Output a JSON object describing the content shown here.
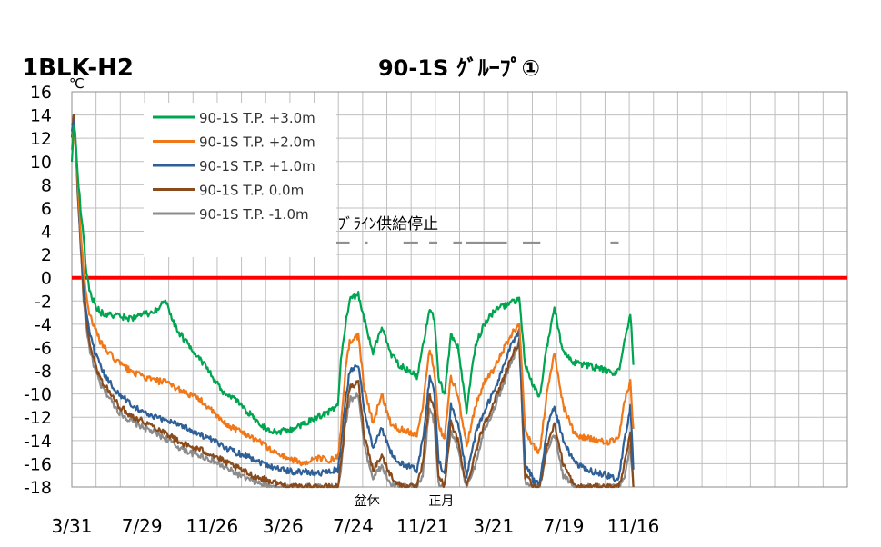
{
  "chart_data": {
    "type": "line",
    "corner_label": "1BLK-H2",
    "title": "90-1S ｸﾞﾙｰﾌﾟ①",
    "ylabel": "℃",
    "ylim": [
      -18,
      16
    ],
    "yticks": [
      16,
      14,
      12,
      10,
      8,
      6,
      4,
      2,
      0,
      -2,
      -4,
      -6,
      -8,
      -10,
      -12,
      -14,
      -16,
      -18
    ],
    "xlim": [
      0,
      1326
    ],
    "xticks": [
      {
        "label": "3/31",
        "t": 0
      },
      {
        "label": "7/29",
        "t": 120
      },
      {
        "label": "11/26",
        "t": 240
      },
      {
        "label": "3/26",
        "t": 361
      },
      {
        "label": "7/24",
        "t": 481
      },
      {
        "label": "11/21",
        "t": 600
      },
      {
        "label": "3/21",
        "t": 721
      },
      {
        "label": "7/19",
        "t": 841
      },
      {
        "label": "11/16",
        "t": 960
      }
    ],
    "grid": true,
    "legend_position": "top-left",
    "reference_line": {
      "y": 0,
      "color": "#ff0000"
    },
    "annotations": [
      {
        "text": "ﾌﾞﾗｲﾝ供給停止",
        "t": 455,
        "y": 4.2
      },
      {
        "text": "盆休",
        "t": 483,
        "y": -19.0
      },
      {
        "text": "正月",
        "t": 610,
        "y": -19.0
      }
    ],
    "brine_stop_periods": [
      [
        443,
        475
      ],
      [
        501,
        506
      ],
      [
        567,
        592
      ],
      [
        611,
        625
      ],
      [
        652,
        667
      ],
      [
        674,
        744
      ],
      [
        771,
        801
      ],
      [
        921,
        935
      ]
    ],
    "series_keypoints_x": [
      0,
      3,
      6,
      10,
      15,
      20,
      25,
      30,
      40,
      50,
      60,
      80,
      100,
      120,
      140,
      160,
      180,
      200,
      220,
      240,
      260,
      280,
      300,
      320,
      340,
      360,
      380,
      400,
      420,
      440,
      455,
      460,
      468,
      475,
      490,
      500,
      515,
      530,
      545,
      560,
      575,
      590,
      600,
      612,
      620,
      627,
      637,
      648,
      660,
      675,
      690,
      705,
      720,
      735,
      750,
      765,
      775,
      790,
      800,
      812,
      825,
      840,
      860,
      880,
      900,
      915,
      925,
      935,
      945,
      955,
      960
    ],
    "series": [
      {
        "name": "90-1S T.P. +3.0m",
        "color": "#00a550",
        "values": [
          10,
          13.2,
          12,
          9,
          6,
          3.5,
          0.5,
          -1,
          -2.4,
          -3,
          -3.2,
          -3.3,
          -3.5,
          -3.2,
          -3,
          -2,
          -4.5,
          -5.8,
          -7,
          -8.5,
          -10,
          -10.5,
          -11.5,
          -12.5,
          -13.2,
          -13.2,
          -13,
          -12.5,
          -12,
          -11.5,
          -11,
          -7,
          -4,
          -2,
          -1.4,
          -3.5,
          -6.5,
          -4.2,
          -6.5,
          -7.5,
          -8,
          -8.5,
          -6,
          -2.5,
          -3.8,
          -8.5,
          -10.2,
          -5,
          -6,
          -11.5,
          -5.8,
          -4,
          -3,
          -2.5,
          -2.2,
          -1.8,
          -7.5,
          -9.5,
          -10.2,
          -6,
          -2.5,
          -6.5,
          -7.3,
          -7.5,
          -7.8,
          -8,
          -8.2,
          -8,
          -5.5,
          -3,
          -7.5
        ]
      },
      {
        "name": "90-1S T.P. +2.0m",
        "color": "#f07818",
        "values": [
          11,
          12.8,
          11.5,
          8.5,
          4,
          0.8,
          -1.5,
          -3,
          -4.5,
          -5.6,
          -6.3,
          -7.3,
          -8,
          -8.5,
          -8.8,
          -9,
          -9.5,
          -10,
          -10.5,
          -11.5,
          -12.5,
          -13,
          -13.5,
          -14,
          -14.8,
          -15.3,
          -15.7,
          -16,
          -15.5,
          -15.7,
          -15.5,
          -13,
          -8,
          -5.5,
          -5,
          -9.5,
          -12.5,
          -10,
          -12.5,
          -13,
          -13.2,
          -13.5,
          -11,
          -6,
          -8,
          -12.5,
          -14,
          -8.5,
          -10,
          -14.5,
          -11,
          -9,
          -8,
          -6.5,
          -5,
          -4,
          -13,
          -14.5,
          -15,
          -10,
          -6.5,
          -11,
          -13.5,
          -13.8,
          -14,
          -14.2,
          -14,
          -14,
          -10.5,
          -9,
          -13
        ]
      },
      {
        "name": "90-1S T.P. +1.0m",
        "color": "#2e5f96",
        "values": [
          12,
          13.5,
          11.8,
          8,
          3.5,
          -0.5,
          -3,
          -4.8,
          -6.5,
          -7.8,
          -8.7,
          -10,
          -10.8,
          -11.5,
          -12,
          -12.2,
          -12.5,
          -13,
          -13.5,
          -14,
          -14.5,
          -15,
          -15.3,
          -15.8,
          -16.2,
          -16.5,
          -16.7,
          -16.7,
          -16.8,
          -16.7,
          -16.5,
          -14.5,
          -10.5,
          -8,
          -7.5,
          -11.5,
          -14.5,
          -13,
          -15,
          -16,
          -16.2,
          -16.5,
          -14,
          -8.5,
          -10,
          -15.5,
          -17,
          -11,
          -12.5,
          -17,
          -13.5,
          -11.5,
          -10,
          -8,
          -6,
          -4.5,
          -16,
          -17.5,
          -17.8,
          -13,
          -11,
          -14,
          -16,
          -16.5,
          -16.8,
          -17,
          -17.2,
          -17.3,
          -14,
          -11,
          -16.5
        ]
      },
      {
        "name": "90-1S T.P.  0.0m",
        "color": "#8a4b1c",
        "values": [
          12.5,
          13.8,
          12,
          7.5,
          3,
          -1.2,
          -3.8,
          -5.5,
          -7.5,
          -8.8,
          -9.5,
          -11,
          -11.8,
          -12.3,
          -12.8,
          -13.3,
          -14,
          -14.5,
          -14.8,
          -15.2,
          -15.8,
          -16.3,
          -16.8,
          -17.2,
          -17.5,
          -17.8,
          -18,
          -18,
          -18,
          -18,
          -18,
          -16,
          -12,
          -9.5,
          -9,
          -13.5,
          -16.5,
          -15.3,
          -17,
          -17.8,
          -18,
          -18,
          -16,
          -10,
          -11.5,
          -17,
          -18,
          -12.5,
          -14,
          -18,
          -15,
          -12.5,
          -11,
          -9,
          -7,
          -5.5,
          -17,
          -18,
          -18,
          -14.5,
          -12.5,
          -16,
          -18,
          -18,
          -18,
          -18,
          -18,
          -18,
          -16,
          -13.5,
          -18
        ]
      },
      {
        "name": "90-1S T.P. -1.0m",
        "color": "#8c8c8c",
        "values": [
          13,
          14,
          12.2,
          7.5,
          2.8,
          -1.8,
          -4.3,
          -6,
          -8,
          -9.3,
          -10,
          -11.5,
          -12.3,
          -12.8,
          -13.3,
          -13.8,
          -14.5,
          -15,
          -15.3,
          -15.7,
          -16.3,
          -16.8,
          -17.3,
          -17.7,
          -18,
          -18,
          -18,
          -18,
          -18,
          -18,
          -18,
          -16.5,
          -12.5,
          -10.5,
          -10,
          -14.5,
          -17.2,
          -16.2,
          -17.8,
          -18,
          -18,
          -18,
          -17,
          -11,
          -12.5,
          -17.8,
          -18,
          -13,
          -14.8,
          -18,
          -16,
          -13,
          -11.5,
          -9.5,
          -7.5,
          -5.5,
          -17.5,
          -18,
          -18,
          -15,
          -13.5,
          -17,
          -18,
          -18,
          -18,
          -18,
          -18,
          -18,
          -17,
          -14.5,
          -18
        ]
      }
    ]
  }
}
